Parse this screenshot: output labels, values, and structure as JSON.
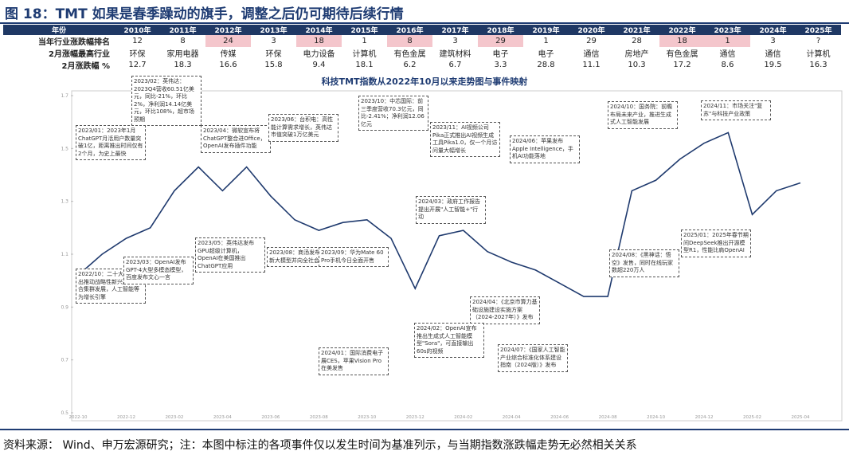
{
  "title": "图 18：TMT 如果是春季躁动的旗手，调整之后仍可期待后续行情",
  "table": {
    "header": [
      "年份",
      "2010年",
      "2011年",
      "2012年",
      "2013年",
      "2014年",
      "2015年",
      "2016年",
      "2017年",
      "2018年",
      "2019年",
      "2020年",
      "2021年",
      "2022年",
      "2023年",
      "2024年",
      "2025年"
    ],
    "rows": [
      [
        "当年行业涨跌幅排名",
        "12",
        "8",
        "24",
        "3",
        "18",
        "1",
        "8",
        "3",
        "29",
        "1",
        "29",
        "28",
        "18",
        "1",
        "3",
        "?"
      ],
      [
        "2月涨幅最高行业",
        "环保",
        "家用电器",
        "传媒",
        "环保",
        "电力设备",
        "计算机",
        "有色金属",
        "建筑材料",
        "电子",
        "电子",
        "通信",
        "房地产",
        "有色金属",
        "通信",
        "通信",
        "计算机"
      ],
      [
        "2月涨跌幅 %",
        "12.7",
        "18.3",
        "16.6",
        "15.8",
        "9.4",
        "18.1",
        "6.2",
        "6.7",
        "3.3",
        "28.8",
        "11.1",
        "10.3",
        "17.2",
        "8.6",
        "19.5",
        "16.3"
      ]
    ],
    "highlight": [
      false,
      false,
      false,
      true,
      false,
      true,
      false,
      true,
      false,
      true,
      false,
      false,
      false,
      true,
      true,
      false
    ]
  },
  "chart_data": {
    "type": "line",
    "title": "科技TMT指数从2022年10月以来走势图与事件映射",
    "x": [
      "2022-10",
      "2022-11",
      "2022-12",
      "2023-01",
      "2023-02",
      "2023-03",
      "2023-04",
      "2023-05",
      "2023-06",
      "2023-07",
      "2023-08",
      "2023-09",
      "2023-10",
      "2023-11",
      "2023-12",
      "2024-01",
      "2024-02",
      "2024-03",
      "2024-04",
      "2024-05",
      "2024-06",
      "2024-07",
      "2024-08",
      "2024-09",
      "2024-10",
      "2024-11",
      "2024-12",
      "2025-01",
      "2025-02",
      "2025-03",
      "2025-04"
    ],
    "series": [
      {
        "name": "科技TMT指数",
        "color": "#1f3a6e",
        "values": [
          1.02,
          1.1,
          1.16,
          1.2,
          1.34,
          1.43,
          1.34,
          1.43,
          1.32,
          1.23,
          1.19,
          1.22,
          1.23,
          1.16,
          0.97,
          1.17,
          1.19,
          1.11,
          1.07,
          1.04,
          0.99,
          0.94,
          0.94,
          1.34,
          1.38,
          1.46,
          1.52,
          1.56,
          1.25,
          1.34,
          1.37
        ]
      }
    ],
    "ylim": [
      0.5,
      1.7
    ],
    "yticks": [
      0.5,
      0.7,
      0.9,
      1.1,
      1.3,
      1.5,
      1.7
    ],
    "annotations": [
      "2023/01：2023年1月ChatGPT月活用户数量突破1亿，距离推出时间仅有2个月，为史上最快",
      "2023/02：英伟达：2023Q4营收60.51亿美元，同比-21%，环比2%，净利润14.14亿美元，环比108%，超市场预期",
      "2023/04：微软宣布将ChatGPT整合进Office，OpenAI发布插件功能",
      "2023/06：台积电：高性能计算需求增长，英伟达市值突破1万亿美元",
      "2023/10：中芯国际：前三季度营收70.3亿元，同比-2.41%；净利润12.06亿元",
      "2023/11：AI视频公司Pika正式推出AI视频生成工具Pika1.0，仅一个月访问量大幅增长",
      "2024/10：国务院：前瞻布局未来产业，推进生成式人工智能发展",
      "2024/11：市场关注\"复苏\"与科技产业政策",
      "2024/06：苹果发布Apple Intelligence，手机AI功能落地",
      "2022/10：二十大报告提出推动战略性新兴产业融合集群发展，人工智能等为增长引擎",
      "2023/03：OpenAI发布GPT-4大型多模态模型，百度发布文心一言",
      "2023/05：英伟达发布GPU超级计算机，OpenAI在美国推出ChatGPT应用",
      "2023/08：商汤发布日日新大模型并向全社会开放",
      "2023/09：华为Mate 60 Pro手机今日全面开售",
      "2024/03：政府工作报告提出开展\"人工智能+\"行动",
      "2024/04：《北京市算力基础设施建设实施方案（2024-2027年）》发布",
      "2024/08：《黑神话：悟空》发售，同时在线玩家数超220万人",
      "2025/01：2025年春节期间DeepSeek推出开源模型R1，性能比肩OpenAI",
      "2024/02：OpenAI宣布推出生成式人工智能模型\"Sora\"，可直接输出60s的视频",
      "2024/01：国际消费电子展CES，苹果Vision Pro在美发售",
      "2024/07：《国家人工智能产业综合标准化体系建设指南（2024版）》发布"
    ]
  },
  "source": "资料来源： Wind、申万宏源研究；注：本图中标注的各项事件仅以发生时间为基准列示，与当期指数涨跌幅走势无必然相关关系"
}
